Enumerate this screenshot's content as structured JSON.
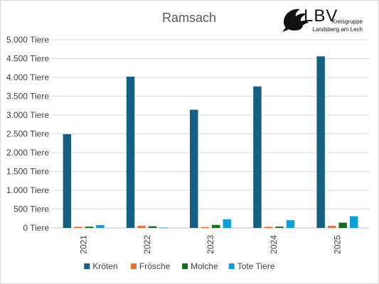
{
  "chart_data": {
    "type": "bar",
    "title": "Ramsach",
    "categories": [
      "2021",
      "2022",
      "2023",
      "2024",
      "2025"
    ],
    "series": [
      {
        "name": "Kröten",
        "color": "#156082",
        "values": [
          2490,
          4020,
          3140,
          3760,
          4560
        ]
      },
      {
        "name": "Frösche",
        "color": "#E97132",
        "values": [
          30,
          55,
          25,
          30,
          55
        ]
      },
      {
        "name": "Molche",
        "color": "#196B24",
        "values": [
          35,
          45,
          80,
          35,
          140
        ]
      },
      {
        "name": "Tote Tiere",
        "color": "#0F9ED5",
        "values": [
          75,
          10,
          230,
          205,
          310
        ]
      }
    ],
    "y_ticks": [
      "0 Tiere",
      "500 Tiere",
      "1.000 Tiere",
      "1.500 Tiere",
      "2.000 Tiere",
      "2.500 Tiere",
      "3.000 Tiere",
      "3.500 Tiere",
      "4.000 Tiere",
      "4.500 Tiere",
      "5.000 Tiere"
    ],
    "ylim": [
      0,
      5000
    ],
    "y_step": 500,
    "grid": true,
    "legend_position": "bottom",
    "x_tick_rotation": "vertical"
  },
  "logo": {
    "text": "LBV",
    "line1": "Kreisgruppe",
    "line2": "Landsberg am Lech",
    "icon": "bird-silhouette-icon"
  }
}
